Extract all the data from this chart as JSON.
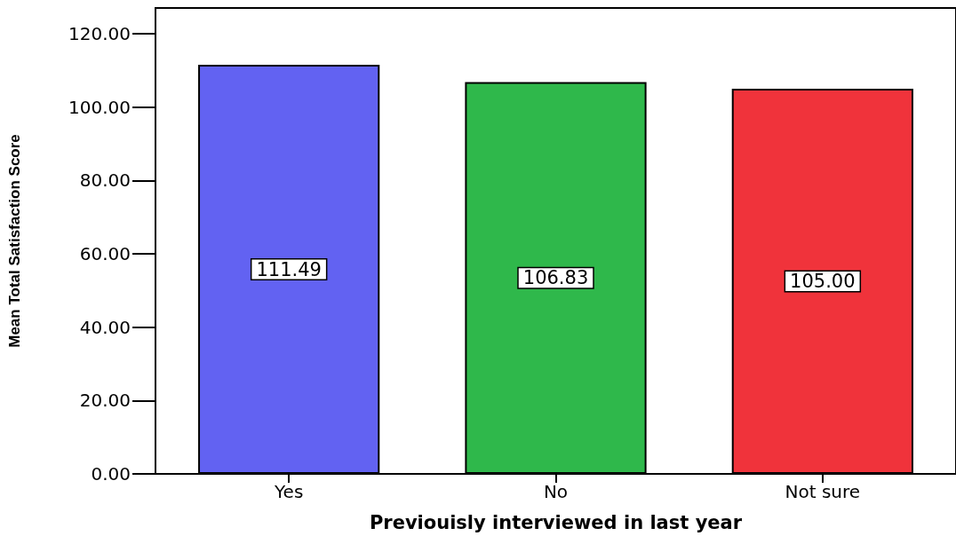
{
  "chart_data": {
    "type": "bar",
    "xlabel": "Previouisly interviewed in last year",
    "ylabel": "Mean Total Satisfaction Score",
    "categories": [
      "Yes",
      "No",
      "Not sure"
    ],
    "values": [
      111.49,
      106.83,
      105.0
    ],
    "colors": [
      "#6262f2",
      "#2fb84b",
      "#f0333b"
    ],
    "value_labels": [
      "111.49",
      "106.83",
      "105.00"
    ],
    "ylim": [
      0,
      127
    ],
    "yticks": [
      {
        "value": 0,
        "label": "0.00"
      },
      {
        "value": 20,
        "label": "20.00"
      },
      {
        "value": 40,
        "label": "40.00"
      },
      {
        "value": 60,
        "label": "60.00"
      },
      {
        "value": 80,
        "label": "80.00"
      },
      {
        "value": 100,
        "label": "100.00"
      },
      {
        "value": 120,
        "label": "120.00"
      }
    ]
  }
}
